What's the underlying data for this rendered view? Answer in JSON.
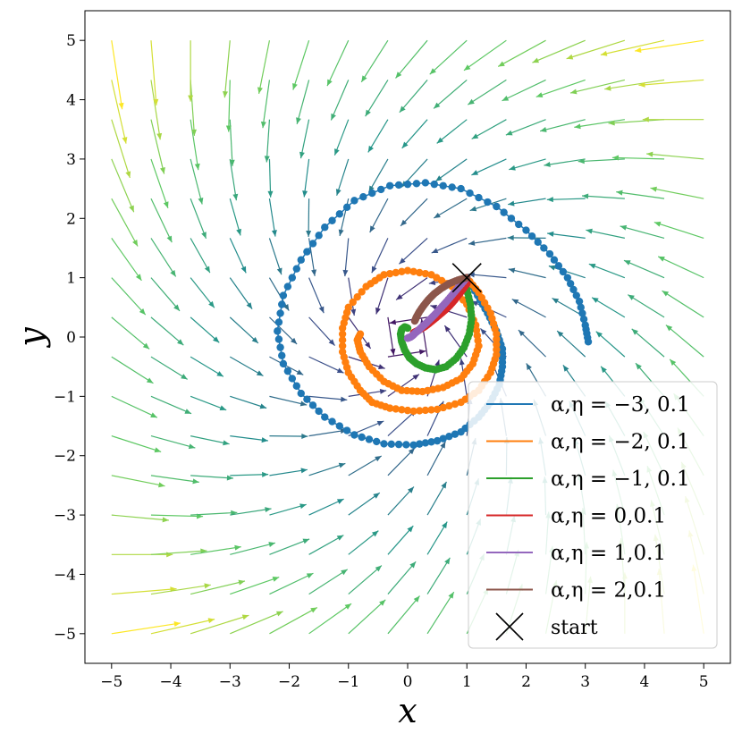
{
  "chart_data": {
    "type": "scatter",
    "xlabel": "x",
    "ylabel": "y",
    "xlim": [
      -5.45,
      5.45
    ],
    "ylim": [
      -5.5,
      5.5
    ],
    "xticks": [
      -5,
      -4,
      -3,
      -2,
      -1,
      0,
      1,
      2,
      3,
      4,
      5
    ],
    "yticks": [
      -5,
      -4,
      -3,
      -2,
      -1,
      0,
      1,
      2,
      3,
      4,
      5
    ],
    "xtick_labels": [
      "−5",
      "−4",
      "−3",
      "−2",
      "−1",
      "0",
      "1",
      "2",
      "3",
      "4",
      "5"
    ],
    "ytick_labels": [
      "−5",
      "−4",
      "−3",
      "−2",
      "−1",
      "0",
      "1",
      "2",
      "3",
      "4",
      "5"
    ],
    "grid": false,
    "legend_position": "lower-right",
    "vector_field": {
      "grid_min": -5,
      "grid_max": 5,
      "grid_n": 16,
      "colormap": [
        "#440154",
        "#3b528b",
        "#21918c",
        "#5ec962",
        "#fde725"
      ]
    },
    "start": {
      "x": 1,
      "y": 1,
      "label": "start"
    },
    "series": [
      {
        "name": "α,η = −3, 0.1",
        "alpha": -3,
        "eta": 0.1,
        "color": "#1f77b4",
        "x": [
          1.0,
          1.18,
          1.35,
          1.5,
          1.6,
          1.6,
          1.55,
          1.4,
          1.2,
          0.9,
          0.5,
          0.1,
          -0.4,
          -0.9,
          -1.4,
          -1.8,
          -2.1,
          -2.2,
          -2.1,
          -1.8,
          -1.4,
          -0.9,
          -0.3,
          0.3,
          0.9,
          1.5,
          2.0,
          2.4,
          2.7,
          2.9,
          3.0,
          3.05
        ],
        "y": [
          1.0,
          0.7,
          0.4,
          0.1,
          -0.2,
          -0.5,
          -0.8,
          -1.1,
          -1.35,
          -1.6,
          -1.75,
          -1.82,
          -1.8,
          -1.65,
          -1.35,
          -0.95,
          -0.45,
          0.1,
          0.7,
          1.3,
          1.85,
          2.3,
          2.55,
          2.6,
          2.5,
          2.2,
          1.8,
          1.4,
          1.0,
          0.6,
          0.2,
          -0.08
        ]
      },
      {
        "name": "α,η = −2, 0.1",
        "alpha": -2,
        "eta": 0.1,
        "color": "#ff7f0e",
        "x": [
          1.0,
          1.2,
          1.4,
          1.5,
          1.5,
          1.4,
          1.2,
          0.9,
          0.5,
          0.1,
          -0.3,
          -0.6,
          -0.8,
          -1.0,
          -1.1,
          -1.1,
          -1.0,
          -0.7,
          -0.4,
          0.0,
          0.4,
          0.75,
          1.0,
          1.15,
          1.2,
          1.1,
          0.9,
          0.6,
          0.25,
          -0.1,
          -0.4,
          -0.65,
          -0.8,
          -0.85,
          -0.8
        ],
        "y": [
          1.0,
          0.75,
          0.4,
          0.05,
          -0.3,
          -0.6,
          -0.9,
          -1.1,
          -1.22,
          -1.25,
          -1.2,
          -1.1,
          -0.9,
          -0.6,
          -0.25,
          0.15,
          0.5,
          0.85,
          1.05,
          1.12,
          1.05,
          0.85,
          0.55,
          0.2,
          -0.15,
          -0.45,
          -0.7,
          -0.85,
          -0.92,
          -0.9,
          -0.75,
          -0.5,
          -0.25,
          -0.05,
          0.05
        ]
      },
      {
        "name": "α,η = −1, 0.1",
        "alpha": -1,
        "eta": 0.1,
        "color": "#2ca02c",
        "x": [
          1.0,
          1.06,
          1.08,
          1.04,
          0.95,
          0.82,
          0.65,
          0.47,
          0.3,
          0.15,
          0.03,
          -0.05,
          -0.1,
          -0.12,
          -0.1,
          -0.05,
          0.0
        ],
        "y": [
          0.8,
          0.55,
          0.3,
          0.05,
          -0.18,
          -0.36,
          -0.5,
          -0.55,
          -0.52,
          -0.45,
          -0.35,
          -0.22,
          -0.08,
          0.05,
          0.13,
          0.17,
          0.15
        ]
      },
      {
        "name": "α,η = 0,0.1",
        "alpha": 0,
        "eta": 0.1,
        "color": "#d62728",
        "x": [
          1.0,
          0.93,
          0.86,
          0.79,
          0.72,
          0.65,
          0.58,
          0.52,
          0.46,
          0.41,
          0.36,
          0.32,
          0.28,
          0.24,
          0.21,
          0.18,
          0.16,
          0.14,
          0.12,
          0.1
        ],
        "y": [
          0.9,
          0.8,
          0.71,
          0.62,
          0.54,
          0.47,
          0.41,
          0.36,
          0.31,
          0.27,
          0.23,
          0.2,
          0.17,
          0.15,
          0.13,
          0.11,
          0.1,
          0.09,
          0.08,
          0.07
        ]
      },
      {
        "name": "α,η = 1,0.1",
        "alpha": 1,
        "eta": 0.1,
        "color": "#9467bd",
        "x": [
          1.0,
          0.88,
          0.77,
          0.66,
          0.56,
          0.47,
          0.39,
          0.31,
          0.24,
          0.18,
          0.13,
          0.09,
          0.05,
          0.02,
          0.0
        ],
        "y": [
          1.0,
          0.86,
          0.73,
          0.6,
          0.49,
          0.39,
          0.31,
          0.23,
          0.17,
          0.11,
          0.07,
          0.03,
          0.0,
          -0.01,
          -0.02
        ]
      },
      {
        "name": "α,η = 2,0.1",
        "alpha": 2,
        "eta": 0.1,
        "color": "#8c564b",
        "x": [
          1.0,
          0.85,
          0.7,
          0.57,
          0.45,
          0.35,
          0.27,
          0.2,
          0.15,
          0.12
        ],
        "y": [
          1.0,
          0.96,
          0.9,
          0.82,
          0.73,
          0.63,
          0.53,
          0.43,
          0.34,
          0.27
        ]
      }
    ]
  }
}
